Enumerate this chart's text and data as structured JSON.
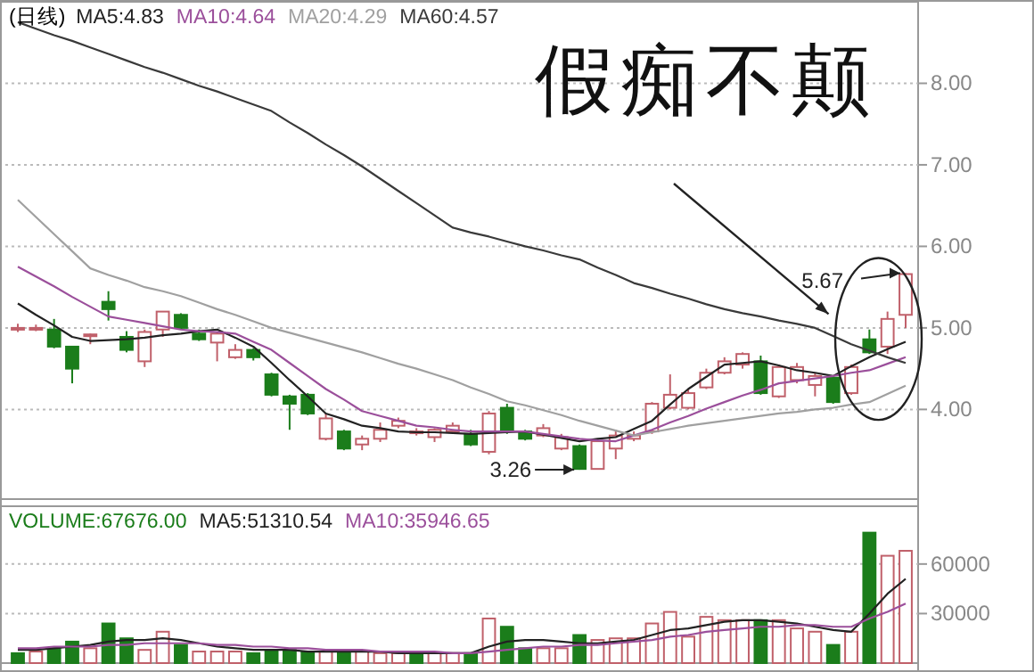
{
  "chart_data": [
    {
      "type": "candlestick",
      "title": "(日线)",
      "categories": [
        null,
        null,
        null,
        null,
        null,
        null,
        null,
        null,
        null,
        null,
        null,
        null,
        null,
        null,
        null,
        null,
        null,
        null,
        null,
        null,
        null,
        null,
        null,
        null,
        null,
        null,
        null,
        null,
        null,
        null,
        null,
        null,
        null,
        null,
        null,
        null,
        null,
        null,
        null,
        null,
        null,
        null,
        null,
        null,
        null,
        null,
        null,
        null,
        null,
        null
      ],
      "ohlc": [
        [
          5.0,
          5.05,
          4.95,
          5.0
        ],
        [
          5.0,
          5.04,
          4.96,
          5.0
        ],
        [
          4.98,
          5.11,
          4.75,
          4.77
        ],
        [
          4.77,
          4.77,
          4.32,
          4.5
        ],
        [
          4.92,
          4.93,
          4.8,
          4.92
        ],
        [
          5.32,
          5.45,
          5.09,
          5.23
        ],
        [
          4.89,
          4.96,
          4.7,
          4.73
        ],
        [
          4.59,
          4.98,
          4.52,
          4.95
        ],
        [
          4.98,
          5.2,
          4.89,
          5.2
        ],
        [
          5.16,
          5.18,
          4.98,
          5.0
        ],
        [
          4.93,
          4.98,
          4.84,
          4.86
        ],
        [
          4.82,
          4.95,
          4.59,
          4.93
        ],
        [
          4.64,
          4.8,
          4.62,
          4.73
        ],
        [
          4.73,
          4.75,
          4.6,
          4.64
        ],
        [
          4.43,
          4.45,
          4.16,
          4.18
        ],
        [
          4.16,
          4.18,
          3.75,
          4.07
        ],
        [
          4.18,
          4.2,
          3.93,
          3.95
        ],
        [
          3.64,
          3.95,
          3.62,
          3.89
        ],
        [
          3.73,
          3.75,
          3.5,
          3.52
        ],
        [
          3.57,
          3.68,
          3.5,
          3.64
        ],
        [
          3.64,
          3.84,
          3.6,
          3.75
        ],
        [
          3.8,
          3.9,
          3.77,
          3.86
        ],
        [
          3.73,
          3.77,
          3.68,
          3.73
        ],
        [
          3.66,
          3.77,
          3.6,
          3.75
        ],
        [
          3.73,
          3.84,
          3.7,
          3.8
        ],
        [
          3.7,
          3.75,
          3.55,
          3.57
        ],
        [
          3.48,
          3.98,
          3.45,
          3.95
        ],
        [
          4.02,
          4.07,
          3.7,
          3.73
        ],
        [
          3.73,
          3.75,
          3.62,
          3.64
        ],
        [
          3.68,
          3.82,
          3.66,
          3.77
        ],
        [
          3.52,
          3.7,
          3.5,
          3.66
        ],
        [
          3.55,
          3.57,
          3.26,
          3.27
        ],
        [
          3.27,
          3.64,
          3.27,
          3.61
        ],
        [
          3.52,
          3.75,
          3.39,
          3.68
        ],
        [
          3.64,
          3.73,
          3.61,
          3.68
        ],
        [
          3.73,
          4.09,
          3.7,
          4.07
        ],
        [
          4.02,
          4.43,
          4.0,
          4.18
        ],
        [
          4.02,
          4.25,
          4.0,
          4.2
        ],
        [
          4.27,
          4.5,
          4.25,
          4.45
        ],
        [
          4.45,
          4.64,
          4.43,
          4.59
        ],
        [
          4.55,
          4.7,
          4.5,
          4.68
        ],
        [
          4.59,
          4.66,
          4.18,
          4.2
        ],
        [
          4.16,
          4.55,
          4.14,
          4.52
        ],
        [
          4.36,
          4.57,
          4.32,
          4.52
        ],
        [
          4.3,
          4.45,
          4.16,
          4.41
        ],
        [
          4.39,
          4.41,
          4.07,
          4.09
        ],
        [
          4.2,
          4.55,
          4.18,
          4.52
        ],
        [
          4.86,
          4.98,
          4.68,
          4.7
        ],
        [
          4.77,
          5.2,
          4.68,
          5.11
        ],
        [
          5.16,
          5.67,
          5.0,
          5.66
        ]
      ],
      "colors": [
        "#c0606a",
        "#c0606a",
        "#1b7d1b",
        "#1b7d1b",
        "#c0606a",
        "#1b7d1b",
        "#1b7d1b",
        "#c0606a",
        "#c0606a",
        "#1b7d1b",
        "#1b7d1b",
        "#c0606a",
        "#c0606a",
        "#1b7d1b",
        "#1b7d1b",
        "#1b7d1b",
        "#1b7d1b",
        "#c0606a",
        "#1b7d1b",
        "#c0606a",
        "#c0606a",
        "#c0606a",
        "#c0606a",
        "#c0606a",
        "#c0606a",
        "#1b7d1b",
        "#c0606a",
        "#1b7d1b",
        "#1b7d1b",
        "#c0606a",
        "#c0606a",
        "#1b7d1b",
        "#c0606a",
        "#c0606a",
        "#c0606a",
        "#c0606a",
        "#c0606a",
        "#c0606a",
        "#c0606a",
        "#c0606a",
        "#c0606a",
        "#1b7d1b",
        "#c0606a",
        "#c0606a",
        "#c0606a",
        "#1b7d1b",
        "#c0606a",
        "#1b7d1b",
        "#c0606a",
        "#c0606a"
      ],
      "series": [
        {
          "name": "MA5:4.83",
          "type": "line",
          "color": "#222222",
          "values": [
            5.3,
            5.16,
            5.03,
            4.89,
            4.84,
            4.85,
            4.86,
            4.88,
            4.91,
            4.93,
            4.96,
            4.98,
            4.88,
            4.77,
            4.57,
            4.36,
            4.16,
            3.95,
            3.88,
            3.8,
            3.77,
            3.73,
            3.72,
            3.72,
            3.71,
            3.7,
            3.71,
            3.72,
            3.73,
            3.69,
            3.65,
            3.61,
            3.64,
            3.66,
            3.76,
            3.86,
            4.06,
            4.25,
            4.4,
            4.55,
            4.57,
            4.59,
            4.54,
            4.48,
            4.45,
            4.41,
            4.53,
            4.64,
            4.74,
            4.83
          ]
        },
        {
          "name": "MA10:4.64",
          "type": "line",
          "color": "#9b4f9b",
          "values": [
            5.75,
            5.63,
            5.51,
            5.38,
            5.26,
            5.14,
            5.1,
            5.06,
            5.02,
            4.98,
            4.96,
            4.95,
            4.93,
            4.83,
            4.73,
            4.57,
            4.41,
            4.25,
            4.12,
            3.98,
            3.92,
            3.86,
            3.8,
            3.78,
            3.75,
            3.73,
            3.73,
            3.73,
            3.73,
            3.7,
            3.67,
            3.64,
            3.62,
            3.61,
            3.68,
            3.75,
            3.84,
            3.92,
            4.01,
            4.09,
            4.17,
            4.24,
            4.32,
            4.35,
            4.38,
            4.41,
            4.45,
            4.48,
            4.56,
            4.64
          ]
        },
        {
          "name": "MA20:4.29",
          "type": "line",
          "color": "#a0a0a0",
          "values": [
            6.57,
            6.36,
            6.15,
            5.94,
            5.73,
            5.65,
            5.58,
            5.5,
            5.45,
            5.39,
            5.31,
            5.23,
            5.16,
            5.08,
            5.0,
            4.94,
            4.88,
            4.82,
            4.76,
            4.7,
            4.63,
            4.56,
            4.5,
            4.43,
            4.36,
            4.27,
            4.19,
            4.1,
            4.05,
            3.99,
            3.93,
            3.86,
            3.8,
            3.74,
            3.68,
            3.72,
            3.76,
            3.8,
            3.83,
            3.86,
            3.89,
            3.92,
            3.95,
            3.97,
            4.0,
            4.02,
            4.06,
            4.09,
            4.19,
            4.29
          ]
        },
        {
          "name": "MA60:4.57",
          "type": "line",
          "color": "#3a3a3a",
          "values": [
            8.75,
            8.67,
            8.59,
            8.52,
            8.44,
            8.36,
            8.28,
            8.2,
            8.13,
            8.05,
            7.97,
            7.9,
            7.82,
            7.74,
            7.66,
            7.52,
            7.39,
            7.25,
            7.12,
            6.98,
            6.83,
            6.68,
            6.53,
            6.38,
            6.23,
            6.17,
            6.12,
            6.06,
            6.0,
            5.95,
            5.89,
            5.84,
            5.74,
            5.65,
            5.55,
            5.49,
            5.42,
            5.36,
            5.29,
            5.23,
            5.18,
            5.14,
            5.09,
            5.05,
            5.0,
            4.9,
            4.8,
            4.72,
            4.64,
            4.57
          ]
        }
      ],
      "ylim": [
        2.9,
        9.0
      ],
      "yticks": [
        {
          "value": 4,
          "label": "4.00"
        },
        {
          "value": 5,
          "label": "5.00"
        },
        {
          "value": 6,
          "label": "6.00"
        },
        {
          "value": 7,
          "label": "7.00"
        },
        {
          "value": 8,
          "label": "8.00"
        }
      ],
      "grid": "y",
      "legend": "top left",
      "annotations": [
        "假痴不颠",
        "5.67",
        "3.26"
      ]
    },
    {
      "type": "bar",
      "categories": [
        null,
        null,
        null,
        null,
        null,
        null,
        null,
        null,
        null,
        null,
        null,
        null,
        null,
        null,
        null,
        null,
        null,
        null,
        null,
        null,
        null,
        null,
        null,
        null,
        null,
        null,
        null,
        null,
        null,
        null,
        null,
        null,
        null,
        null,
        null,
        null,
        null,
        null,
        null,
        null,
        null,
        null,
        null,
        null,
        null,
        null,
        null,
        null,
        null,
        null
      ],
      "series": [
        {
          "name": "VOLUME:67676.00",
          "type": "bar",
          "values": [
            6000,
            7000,
            9000,
            13000,
            9000,
            24000,
            15000,
            8000,
            19000,
            11000,
            7000,
            7000,
            7000,
            6000,
            8000,
            8000,
            7000,
            7000,
            7000,
            7000,
            6000,
            6000,
            6000,
            6000,
            6000,
            6000,
            27000,
            22000,
            9000,
            9000,
            9000,
            17000,
            14000,
            15000,
            15000,
            24000,
            31000,
            16000,
            28000,
            26000,
            26000,
            26000,
            26000,
            21000,
            19000,
            11000,
            19000,
            79000,
            65000,
            68000
          ],
          "colors": [
            "#1b7d1b",
            "#c0606a",
            "#1b7d1b",
            "#1b7d1b",
            "#c0606a",
            "#1b7d1b",
            "#1b7d1b",
            "#c0606a",
            "#c0606a",
            "#1b7d1b",
            "#c0606a",
            "#c0606a",
            "#c0606a",
            "#1b7d1b",
            "#1b7d1b",
            "#1b7d1b",
            "#1b7d1b",
            "#c0606a",
            "#1b7d1b",
            "#c0606a",
            "#c0606a",
            "#c0606a",
            "#1b7d1b",
            "#c0606a",
            "#c0606a",
            "#1b7d1b",
            "#c0606a",
            "#1b7d1b",
            "#1b7d1b",
            "#c0606a",
            "#c0606a",
            "#1b7d1b",
            "#c0606a",
            "#c0606a",
            "#c0606a",
            "#c0606a",
            "#c0606a",
            "#c0606a",
            "#c0606a",
            "#c0606a",
            "#c0606a",
            "#1b7d1b",
            "#c0606a",
            "#c0606a",
            "#c0606a",
            "#1b7d1b",
            "#c0606a",
            "#1b7d1b",
            "#c0606a",
            "#c0606a"
          ]
        },
        {
          "name": "MA5:51310.54",
          "type": "line",
          "color": "#222222",
          "values": [
            8000,
            8000,
            9000,
            10000,
            11000,
            13000,
            14000,
            14000,
            15000,
            14000,
            12000,
            10000,
            9000,
            8000,
            8000,
            8000,
            7000,
            7000,
            7000,
            7000,
            7000,
            6000,
            6000,
            6000,
            6000,
            6000,
            10000,
            13000,
            14000,
            14000,
            13000,
            12000,
            12000,
            13000,
            14000,
            17000,
            20000,
            21000,
            23000,
            25000,
            26000,
            26000,
            25000,
            24000,
            22000,
            20000,
            19000,
            30000,
            42000,
            51000
          ]
        },
        {
          "name": "MA10:35946.65",
          "type": "line",
          "color": "#9b4f9b",
          "values": [
            9000,
            9000,
            10000,
            10000,
            10000,
            11000,
            11000,
            12000,
            12000,
            12000,
            12000,
            11000,
            11000,
            10000,
            10000,
            9000,
            9000,
            8000,
            8000,
            8000,
            7000,
            7000,
            7000,
            7000,
            6000,
            6000,
            7000,
            8000,
            9000,
            10000,
            10000,
            11000,
            11000,
            12000,
            13000,
            14000,
            16000,
            17000,
            19000,
            20000,
            21000,
            22000,
            22000,
            23000,
            23000,
            22000,
            22000,
            27000,
            31000,
            36000
          ]
        }
      ],
      "ylim": [
        0,
        95000
      ],
      "yticks": [
        30000,
        60000
      ],
      "grid": "y",
      "legend": "top left"
    }
  ]
}
